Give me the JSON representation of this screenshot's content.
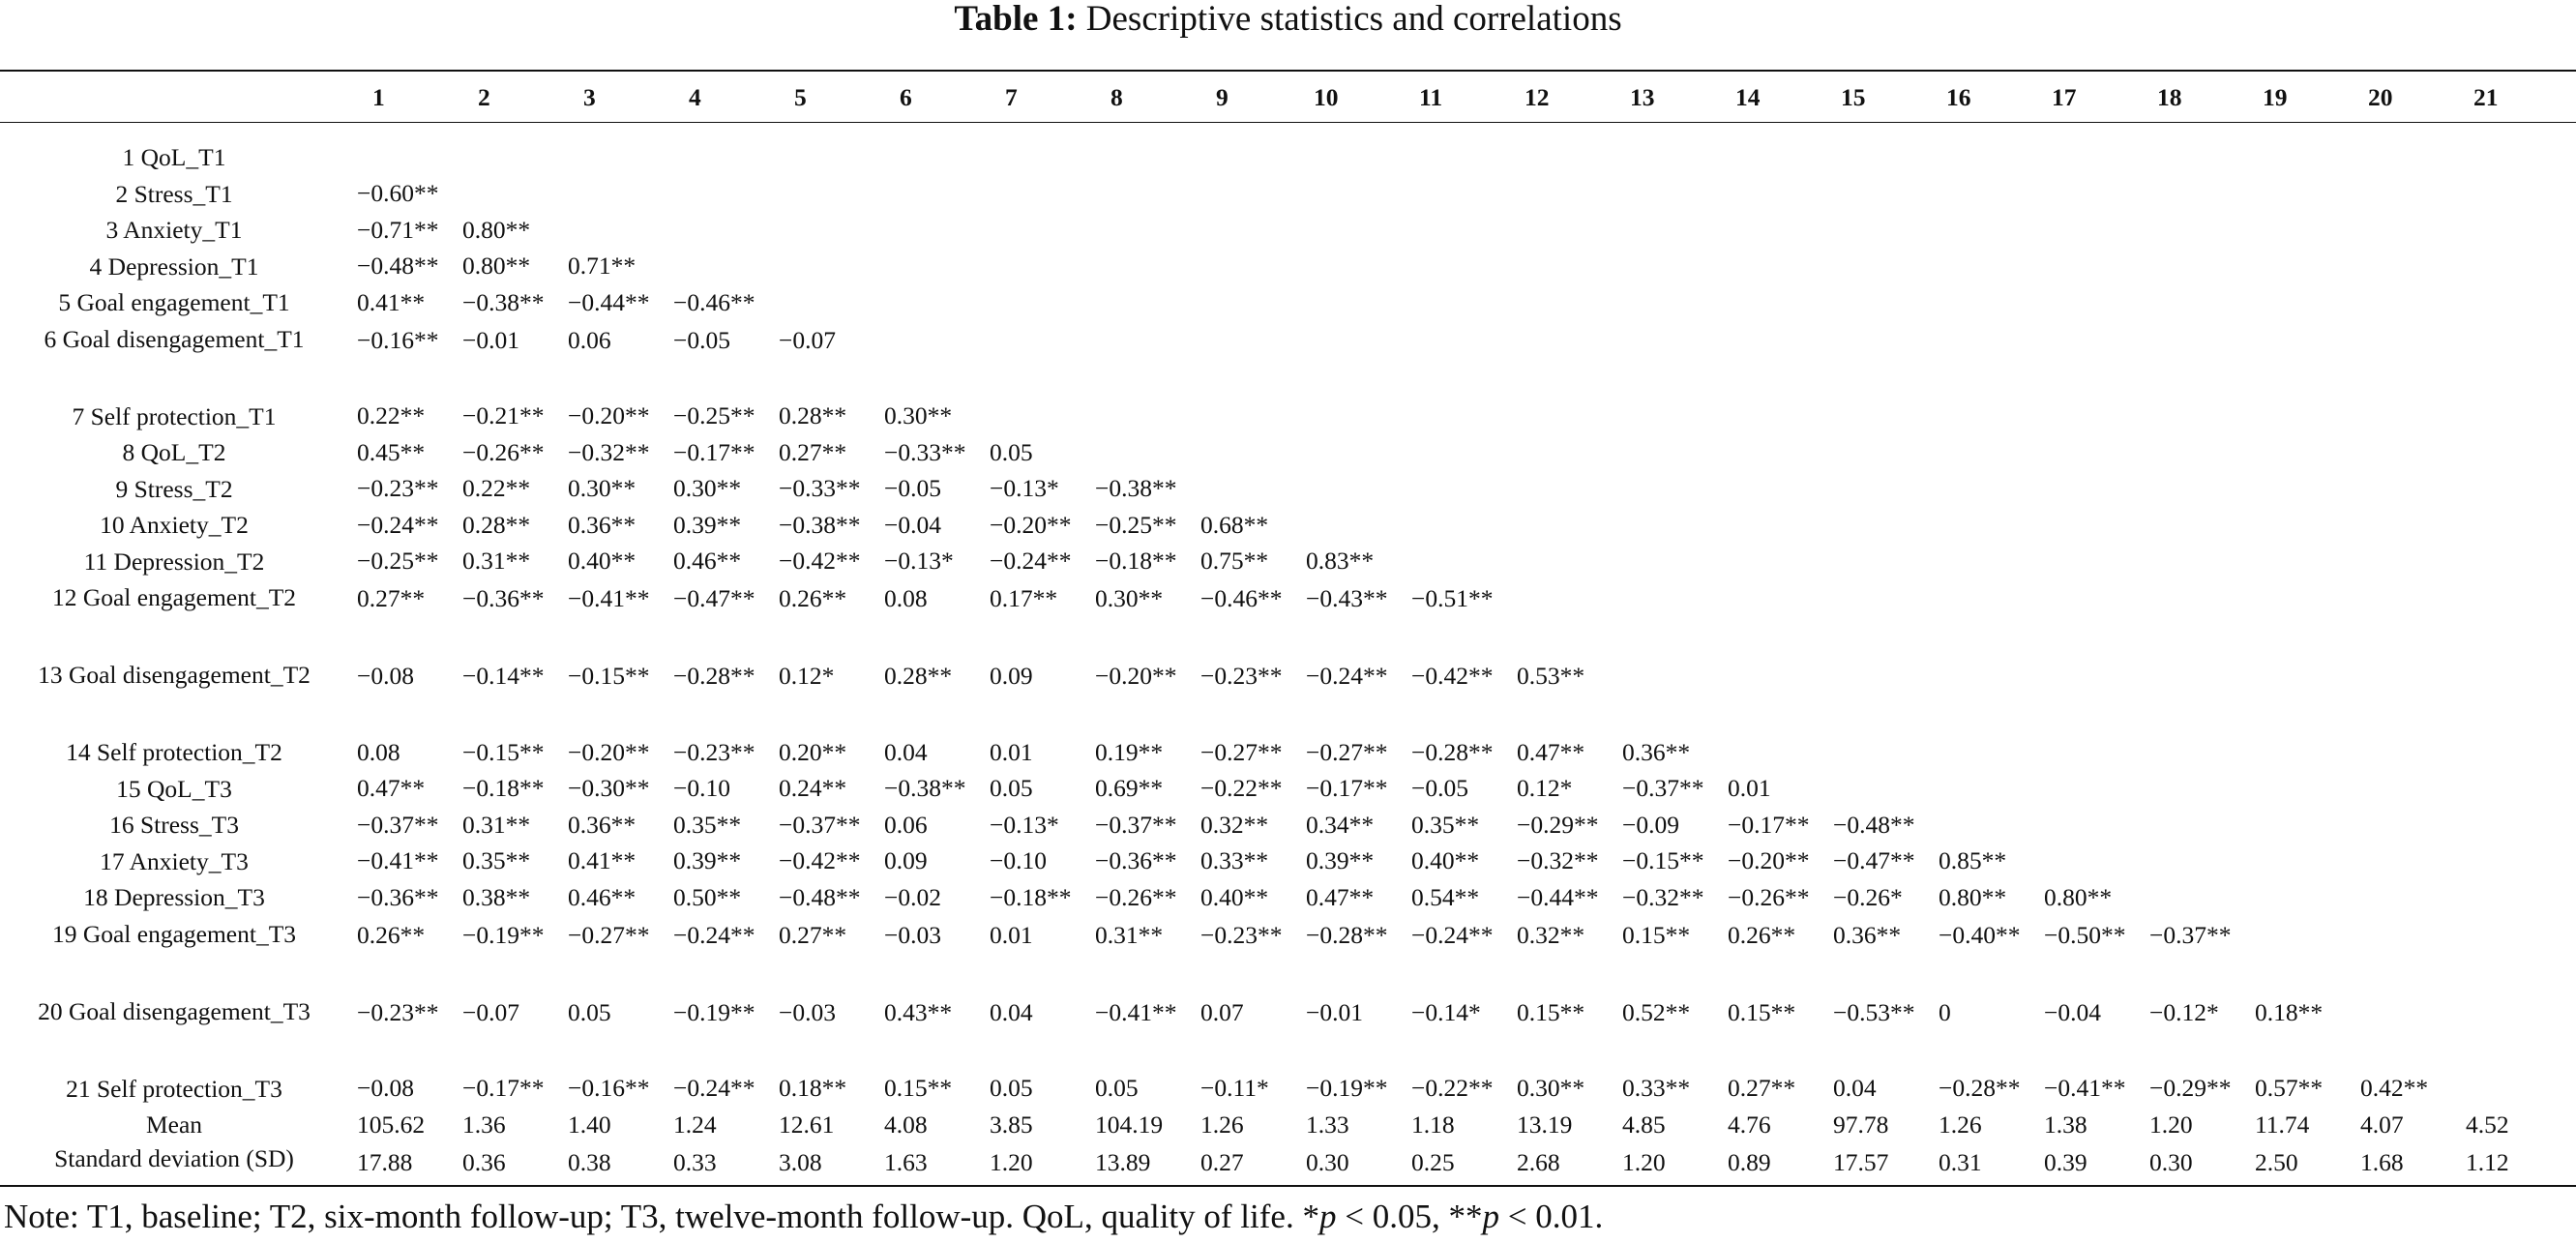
{
  "caption": {
    "label": "Table 1:",
    "title": "Descriptive statistics and correlations"
  },
  "columns": [
    "",
    "1",
    "2",
    "3",
    "4",
    "5",
    "6",
    "7",
    "8",
    "9",
    "10",
    "11",
    "12",
    "13",
    "14",
    "15",
    "16",
    "17",
    "18",
    "19",
    "20",
    "21"
  ],
  "rows": [
    {
      "label": "1 QoL_T1",
      "cells": []
    },
    {
      "label": "2 Stress_T1",
      "cells": [
        "−0.60**"
      ]
    },
    {
      "label": "3 Anxiety_T1",
      "cells": [
        "−0.71**",
        "0.80**"
      ]
    },
    {
      "label": "4 Depression_T1",
      "cells": [
        "−0.48**",
        "0.80**",
        "0.71**"
      ]
    },
    {
      "label": "5 Goal engagement_T1",
      "cells": [
        "0.41**",
        "−0.38**",
        "−0.44**",
        "−0.46**"
      ]
    },
    {
      "label": "6 Goal disengagement_T1",
      "cells": [
        "−0.16**",
        "−0.01",
        "0.06",
        "−0.05",
        "−0.07"
      ]
    },
    {
      "label": "7 Self protection_T1",
      "cells": [
        "0.22**",
        "−0.21**",
        "−0.20**",
        "−0.25**",
        "0.28**",
        "0.30**"
      ]
    },
    {
      "label": "8 QoL_T2",
      "cells": [
        "0.45**",
        "−0.26**",
        "−0.32**",
        "−0.17**",
        "0.27**",
        "−0.33**",
        "0.05"
      ]
    },
    {
      "label": "9 Stress_T2",
      "cells": [
        "−0.23**",
        "0.22**",
        "0.30**",
        "0.30**",
        "−0.33**",
        "−0.05",
        "−0.13*",
        "−0.38**"
      ]
    },
    {
      "label": "10 Anxiety_T2",
      "cells": [
        "−0.24**",
        "0.28**",
        "0.36**",
        "0.39**",
        "−0.38**",
        "−0.04",
        "−0.20**",
        "−0.25**",
        "0.68**"
      ]
    },
    {
      "label": "11 Depression_T2",
      "cells": [
        "−0.25**",
        "0.31**",
        "0.40**",
        "0.46**",
        "−0.42**",
        "−0.13*",
        "−0.24**",
        "−0.18**",
        "0.75**",
        "0.83**"
      ]
    },
    {
      "label": "12 Goal engagement_T2",
      "cells": [
        "0.27**",
        "−0.36**",
        "−0.41**",
        "−0.47**",
        "0.26**",
        "0.08",
        "0.17**",
        "0.30**",
        "−0.46**",
        "−0.43**",
        "−0.51**"
      ]
    },
    {
      "label": "13 Goal disengagement_T2",
      "cells": [
        "−0.08",
        "−0.14**",
        "−0.15**",
        "−0.28**",
        "0.12*",
        "0.28**",
        "0.09",
        "−0.20**",
        "−0.23**",
        "−0.24**",
        "−0.42**",
        "0.53**"
      ]
    },
    {
      "label": "14 Self protection_T2",
      "cells": [
        "0.08",
        "−0.15**",
        "−0.20**",
        "−0.23**",
        "0.20**",
        "0.04",
        "0.01",
        "0.19**",
        "−0.27**",
        "−0.27**",
        "−0.28**",
        "0.47**",
        "0.36**"
      ]
    },
    {
      "label": "15 QoL_T3",
      "cells": [
        "0.47**",
        "−0.18**",
        "−0.30**",
        "−0.10",
        "0.24**",
        "−0.38**",
        "0.05",
        "0.69**",
        "−0.22**",
        "−0.17**",
        "−0.05",
        "0.12*",
        "−0.37**",
        "0.01"
      ]
    },
    {
      "label": "16 Stress_T3",
      "cells": [
        "−0.37**",
        "0.31**",
        "0.36**",
        "0.35**",
        "−0.37**",
        "0.06",
        "−0.13*",
        "−0.37**",
        "0.32**",
        "0.34**",
        "0.35**",
        "−0.29**",
        "−0.09",
        "−0.17**",
        "−0.48**"
      ]
    },
    {
      "label": "17 Anxiety_T3",
      "cells": [
        "−0.41**",
        "0.35**",
        "0.41**",
        "0.39**",
        "−0.42**",
        "0.09",
        "−0.10",
        "−0.36**",
        "0.33**",
        "0.39**",
        "0.40**",
        "−0.32**",
        "−0.15**",
        "−0.20**",
        "−0.47**",
        "0.85**"
      ]
    },
    {
      "label": "18 Depression_T3",
      "cells": [
        "−0.36**",
        "0.38**",
        "0.46**",
        "0.50**",
        "−0.48**",
        "−0.02",
        "−0.18**",
        "−0.26**",
        "0.40**",
        "0.47**",
        "0.54**",
        "−0.44**",
        "−0.32**",
        "−0.26**",
        "−0.26*",
        "0.80**",
        "0.80**"
      ]
    },
    {
      "label": "19 Goal engagement_T3",
      "cells": [
        "0.26**",
        "−0.19**",
        "−0.27**",
        "−0.24**",
        "0.27**",
        "−0.03",
        "0.01",
        "0.31**",
        "−0.23**",
        "−0.28**",
        "−0.24**",
        "0.32**",
        "0.15**",
        "0.26**",
        "0.36**",
        "−0.40**",
        "−0.50**",
        "−0.37**"
      ]
    },
    {
      "label": "20 Goal disengagement_T3",
      "cells": [
        "−0.23**",
        "−0.07",
        "0.05",
        "−0.19**",
        "−0.03",
        "0.43**",
        "0.04",
        "−0.41**",
        "0.07",
        "−0.01",
        "−0.14*",
        "0.15**",
        "0.52**",
        "0.15**",
        "−0.53**",
        "0",
        "−0.04",
        "−0.12*",
        "0.18**"
      ]
    },
    {
      "label": "21 Self protection_T3",
      "cells": [
        "−0.08",
        "−0.17**",
        "−0.16**",
        "−0.24**",
        "0.18**",
        "0.15**",
        "0.05",
        "0.05",
        "−0.11*",
        "−0.19**",
        "−0.22**",
        "0.30**",
        "0.33**",
        "0.27**",
        "0.04",
        "−0.28**",
        "−0.41**",
        "−0.29**",
        "0.57**",
        "0.42**"
      ]
    },
    {
      "label": "Mean",
      "cells": [
        "105.62",
        "1.36",
        "1.40",
        "1.24",
        "12.61",
        "4.08",
        "3.85",
        "104.19",
        "1.26",
        "1.33",
        "1.18",
        "13.19",
        "4.85",
        "4.76",
        "97.78",
        "1.26",
        "1.38",
        "1.20",
        "11.74",
        "4.07",
        "4.52"
      ]
    },
    {
      "label": "Standard deviation (SD)",
      "cells": [
        "17.88",
        "0.36",
        "0.38",
        "0.33",
        "3.08",
        "1.63",
        "1.20",
        "13.89",
        "0.27",
        "0.30",
        "0.25",
        "2.68",
        "1.20",
        "0.89",
        "17.57",
        "0.31",
        "0.39",
        "0.30",
        "2.50",
        "1.68",
        "1.12"
      ]
    }
  ],
  "note": {
    "prefix": "Note: T1, baseline; T2, six-month follow-up; T3, twelve-month follow-up. QoL, quality of life. *",
    "p1": "p",
    "mid": " < 0.05, **",
    "p2": "p",
    "suffix": " < 0.01."
  }
}
